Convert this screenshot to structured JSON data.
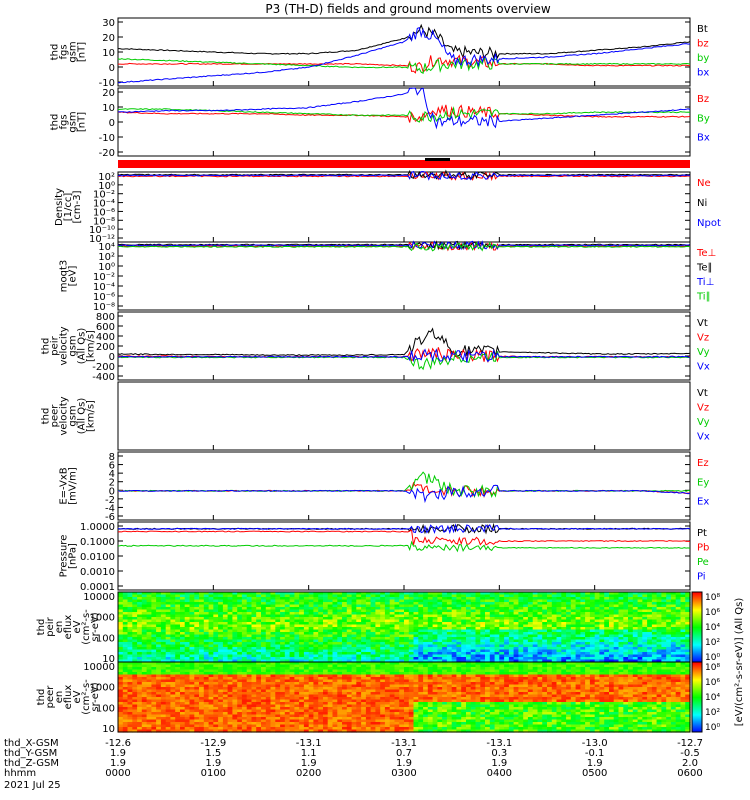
{
  "title": "P3 (TH-D) fields and ground moments overview",
  "colors": {
    "black": "#000000",
    "red": "#ff0000",
    "green": "#00cc00",
    "blue": "#0000ff",
    "panel_border": "#000000",
    "background": "#ffffff"
  },
  "panels": [
    {
      "id": "fgs-gsm",
      "ylabel": [
        "thd",
        "fgs",
        "gsm",
        "[nT]"
      ],
      "yticks": [
        "30",
        "20",
        "10",
        "0",
        "-10"
      ],
      "ylim": [
        -10,
        30
      ],
      "legend": [
        {
          "label": "Bt",
          "color": "#000000"
        },
        {
          "label": "bz",
          "color": "#ff0000"
        },
        {
          "label": "by",
          "color": "#00cc00"
        },
        {
          "label": "bx",
          "color": "#0000ff"
        }
      ]
    },
    {
      "id": "fgs-gsm-2",
      "ylabel": [
        "thd",
        "fgs",
        "gsm",
        "[nT]"
      ],
      "yticks": [
        "20",
        "10",
        "0",
        "-10",
        "-20"
      ],
      "ylim": [
        -25,
        20
      ],
      "legend": [
        {
          "label": "Bz",
          "color": "#ff0000"
        },
        {
          "label": "By",
          "color": "#00cc00"
        },
        {
          "label": "Bx",
          "color": "#0000ff"
        }
      ]
    },
    {
      "id": "density",
      "ylabel": [
        "Density",
        "[1/cc]",
        "[cm-3]"
      ],
      "yticks": [
        "10²",
        "10⁰",
        "10⁻²",
        "10⁻⁴",
        "10⁻⁶",
        "10⁻⁸",
        "10⁻¹⁰",
        "10⁻¹²"
      ],
      "legend": [
        {
          "label": "Ne",
          "color": "#ff0000"
        },
        {
          "label": "Ni",
          "color": "#000000"
        },
        {
          "label": "Npot",
          "color": "#0000ff"
        }
      ]
    },
    {
      "id": "temperature",
      "ylabel": [
        "moqt3",
        "[eV]"
      ],
      "yticks": [
        "10⁴",
        "10²",
        "10⁰",
        "10⁻²",
        "10⁻⁴",
        "10⁻⁶",
        "10⁻⁸"
      ],
      "legend": [
        {
          "label": "Te⊥",
          "color": "#ff0000"
        },
        {
          "label": "Te∥",
          "color": "#000000"
        },
        {
          "label": "Ti⊥",
          "color": "#0000ff"
        },
        {
          "label": "Ti∥",
          "color": "#00cc00"
        }
      ]
    },
    {
      "id": "peir-velocity",
      "ylabel": [
        "thd",
        "peir",
        "velocity",
        "gsm",
        "(All Qs)",
        "[km/s]"
      ],
      "yticks": [
        "800",
        "600",
        "400",
        "200",
        "0",
        "-200",
        "-400"
      ],
      "ylim": [
        -400,
        800
      ],
      "legend": [
        {
          "label": "Vt",
          "color": "#000000"
        },
        {
          "label": "Vz",
          "color": "#ff0000"
        },
        {
          "label": "Vy",
          "color": "#00cc00"
        },
        {
          "label": "Vx",
          "color": "#0000ff"
        }
      ]
    },
    {
      "id": "peer-velocity",
      "ylabel": [
        "thd",
        "peer",
        "velocity",
        "gsm",
        "(All Qs)",
        "[km/s]"
      ],
      "yticks": [],
      "legend": [
        {
          "label": "Vt",
          "color": "#000000"
        },
        {
          "label": "Vz",
          "color": "#ff0000"
        },
        {
          "label": "Vy",
          "color": "#00cc00"
        },
        {
          "label": "Vx",
          "color": "#0000ff"
        }
      ]
    },
    {
      "id": "efield",
      "ylabel": [
        "E=-VxB",
        "[mV/m]"
      ],
      "yticks": [
        "8",
        "6",
        "4",
        "2",
        "0",
        "-2",
        "-4",
        "-6"
      ],
      "ylim": [
        -6,
        8
      ],
      "legend": [
        {
          "label": "Ez",
          "color": "#ff0000"
        },
        {
          "label": "Ey",
          "color": "#00cc00"
        },
        {
          "label": "Ex",
          "color": "#0000ff"
        }
      ]
    },
    {
      "id": "pressure",
      "ylabel": [
        "Pressure",
        "[nPa]"
      ],
      "yticks": [
        "1.0000",
        "0.1000",
        "0.0100",
        "0.0010",
        "0.0001"
      ],
      "legend": [
        {
          "label": "Pt",
          "color": "#000000"
        },
        {
          "label": "Pb",
          "color": "#ff0000"
        },
        {
          "label": "Pe",
          "color": "#00cc00"
        },
        {
          "label": "Pi",
          "color": "#0000ff"
        }
      ]
    },
    {
      "id": "peir-eflux",
      "ylabel": [
        "thd",
        "peir",
        "en",
        "eflux",
        "eV",
        "(cm²-s-",
        "sr-eV)"
      ],
      "yticks": [
        "10000",
        "1000",
        "100",
        "10"
      ]
    },
    {
      "id": "peer-eflux",
      "ylabel": [
        "thd",
        "peer",
        "en",
        "eflux",
        "eV",
        "(cm²-s-",
        "sr-eV)"
      ],
      "yticks": [
        "10000",
        "1000",
        "100",
        "10"
      ]
    }
  ],
  "colorbars": [
    {
      "ticks": [
        "10⁸",
        "10⁶",
        "10⁴",
        "10²",
        "10⁰"
      ]
    },
    {
      "ticks": [
        "10⁸",
        "10⁶",
        "10⁴",
        "10²",
        "10⁰"
      ]
    }
  ],
  "colorbar_label": "[eV/(cm²-s-sr-eV)] (All Qs)",
  "bottom_axis": {
    "rows": [
      {
        "label": "thd_X-GSM",
        "values": [
          "-12.6",
          "-12.9",
          "-13.1",
          "-13.1",
          "-13.1",
          "-13.0",
          "-12.7"
        ]
      },
      {
        "label": "thd_Y-GSM",
        "values": [
          "1.9",
          "1.5",
          "1.1",
          "0.7",
          "0.3",
          "-0.1",
          "-0.5"
        ]
      },
      {
        "label": "thd_Z-GSM",
        "values": [
          "1.9",
          "1.9",
          "1.9",
          "1.9",
          "1.9",
          "1.9",
          "2.0"
        ]
      },
      {
        "label": "hhmm",
        "values": [
          "0000",
          "0100",
          "0200",
          "0300",
          "0400",
          "0500",
          "0600"
        ]
      }
    ],
    "date": "2021 Jul 25"
  },
  "chart_data": {
    "type": "line",
    "title": "P3 (TH-D) fields and ground moments overview",
    "x": [
      "0000",
      "0030",
      "0100",
      "0130",
      "0200",
      "0230",
      "0300",
      "0310",
      "0320",
      "0330",
      "0400",
      "0430",
      "0500",
      "0530",
      "0600"
    ],
    "xlabel": "hhmm",
    "subplots": [
      {
        "name": "fgs-gsm",
        "ylim": [
          -10,
          30
        ],
        "series": [
          {
            "name": "Bt",
            "values": [
              12,
              11,
              10,
              9,
              9,
              11,
              18,
              23,
              20,
              10,
              9,
              9,
              11,
              13,
              16
            ]
          },
          {
            "name": "bz",
            "values": [
              3,
              3,
              3,
              3,
              3,
              3,
              2,
              1,
              6,
              5,
              3,
              3,
              2,
              2,
              2
            ]
          },
          {
            "name": "by",
            "values": [
              6,
              5,
              4,
              3,
              2,
              1,
              1,
              0,
              2,
              3,
              3,
              3,
              3,
              3,
              3
            ]
          },
          {
            "name": "bx",
            "values": [
              -8,
              -6,
              -4,
              -2,
              1,
              8,
              16,
              23,
              18,
              5,
              6,
              7,
              9,
              12,
              15
            ]
          }
        ]
      },
      {
        "name": "fgs-gsm-2",
        "ylim": [
          -25,
          20
        ],
        "series": [
          {
            "name": "Bz",
            "values": [
              4,
              3,
              3,
              3,
              2,
              2,
              1,
              1,
              6,
              5,
              3,
              2,
              1,
              1,
              1
            ]
          },
          {
            "name": "By",
            "values": [
              6,
              6,
              5,
              4,
              3,
              2,
              2,
              1,
              2,
              3,
              3,
              3,
              4,
              4,
              4
            ]
          },
          {
            "name": "Bx",
            "values": [
              4,
              5,
              5,
              6,
              7,
              11,
              16,
              20,
              -3,
              -2,
              -2,
              0,
              2,
              4,
              6
            ]
          }
        ]
      },
      {
        "name": "peir-velocity",
        "ylim": [
          -400,
          800
        ],
        "series": [
          {
            "name": "Vt",
            "values": [
              60,
              50,
              50,
              40,
              40,
              40,
              50,
              300,
              450,
              120,
              100,
              80,
              60,
              60,
              70
            ]
          },
          {
            "name": "Vz",
            "values": [
              20,
              20,
              10,
              10,
              10,
              10,
              10,
              60,
              80,
              20,
              20,
              10,
              10,
              10,
              10
            ]
          },
          {
            "name": "Vy",
            "values": [
              0,
              0,
              0,
              0,
              0,
              0,
              0,
              -150,
              -100,
              0,
              0,
              0,
              0,
              0,
              0
            ]
          },
          {
            "name": "Vx",
            "values": [
              10,
              10,
              10,
              10,
              10,
              10,
              10,
              50,
              40,
              10,
              10,
              10,
              10,
              10,
              10
            ]
          }
        ]
      },
      {
        "name": "efield",
        "ylim": [
          -6,
          8
        ],
        "series": [
          {
            "name": "Ez",
            "values": [
              0,
              0,
              0,
              0,
              0,
              0,
              0,
              1,
              -1.5,
              0,
              0,
              0,
              0,
              0,
              -0.5
            ]
          },
          {
            "name": "Ey",
            "values": [
              0,
              0,
              0,
              0,
              0,
              0,
              0,
              3,
              2,
              0,
              0,
              0,
              0,
              0,
              0
            ]
          },
          {
            "name": "Ex",
            "values": [
              0,
              0,
              0,
              0,
              0,
              0,
              0,
              -1,
              -1,
              0,
              0,
              0,
              0,
              0,
              -0.5
            ]
          }
        ]
      }
    ]
  }
}
